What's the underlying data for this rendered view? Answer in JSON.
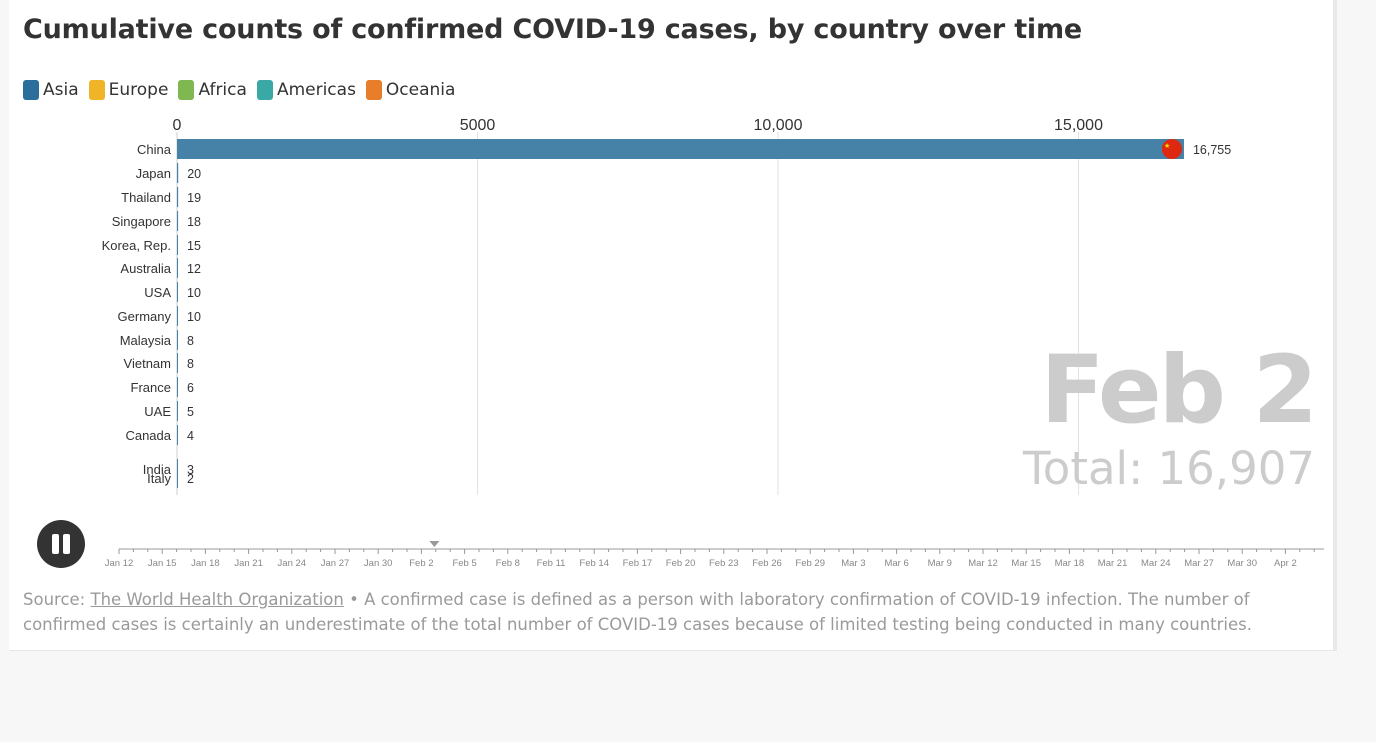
{
  "title": "Cumulative counts of confirmed COVID-19 cases, by country over time",
  "legend": [
    {
      "label": "Asia",
      "color": "#2c6e9b"
    },
    {
      "label": "Europe",
      "color": "#f0b429"
    },
    {
      "label": "Africa",
      "color": "#7fb850"
    },
    {
      "label": "Americas",
      "color": "#3aa8a5"
    },
    {
      "label": "Oceania",
      "color": "#e87d2a"
    }
  ],
  "chart_data": {
    "type": "bar",
    "orientation": "horizontal",
    "title": "Cumulative counts of confirmed COVID-19 cases, by country over time",
    "xlim": [
      0,
      19000
    ],
    "xticks": [
      0,
      5000,
      10000,
      15000
    ],
    "xtick_labels": [
      "0",
      "5000",
      "10,000",
      "15,000"
    ],
    "grid": true,
    "bar_color": "#4682a8",
    "bars": [
      {
        "category": "China",
        "value": 16755,
        "label": "16,755",
        "flag_color": "#de2910"
      },
      {
        "category": "Japan",
        "value": 20,
        "label": "20"
      },
      {
        "category": "Thailand",
        "value": 19,
        "label": "19"
      },
      {
        "category": "Singapore",
        "value": 18,
        "label": "18"
      },
      {
        "category": "Korea, Rep.",
        "value": 15,
        "label": "15"
      },
      {
        "category": "Australia",
        "value": 12,
        "label": "12"
      },
      {
        "category": "USA",
        "value": 10,
        "label": "10"
      },
      {
        "category": "Germany",
        "value": 10,
        "label": "10"
      },
      {
        "category": "Malaysia",
        "value": 8,
        "label": "8"
      },
      {
        "category": "Vietnam",
        "value": 8,
        "label": "8"
      },
      {
        "category": "France",
        "value": 6,
        "label": "6"
      },
      {
        "category": "UAE",
        "value": 5,
        "label": "5"
      },
      {
        "category": "Canada",
        "value": 4,
        "label": "4"
      },
      {
        "category": "India",
        "value": 3,
        "label": "3"
      },
      {
        "category": "Italy",
        "value": 2,
        "label": "2"
      }
    ]
  },
  "current_date": "Feb 2",
  "total_label": "Total: 16,907",
  "timeline": {
    "labels": [
      "Jan 12",
      "Jan 15",
      "Jan 18",
      "Jan 21",
      "Jan 24",
      "Jan 27",
      "Jan 30",
      "Feb 2",
      "Feb 5",
      "Feb 8",
      "Feb 11",
      "Feb 14",
      "Feb 17",
      "Feb 20",
      "Feb 23",
      "Feb 26",
      "Feb 29",
      "Mar 3",
      "Mar 6",
      "Mar 9",
      "Mar 12",
      "Mar 15",
      "Mar 18",
      "Mar 21",
      "Mar 24",
      "Mar 27",
      "Mar 30",
      "Apr 2"
    ],
    "current_index": 7
  },
  "source": {
    "prefix": "Source: ",
    "link_text": "The World Health Organization",
    "text": " • A confirmed case is defined as a person with laboratory confirmation of COVID-19 infection. The number of confirmed cases is certainly an underestimate of the total number of COVID-19 cases because of limited testing being conducted in many countries."
  }
}
